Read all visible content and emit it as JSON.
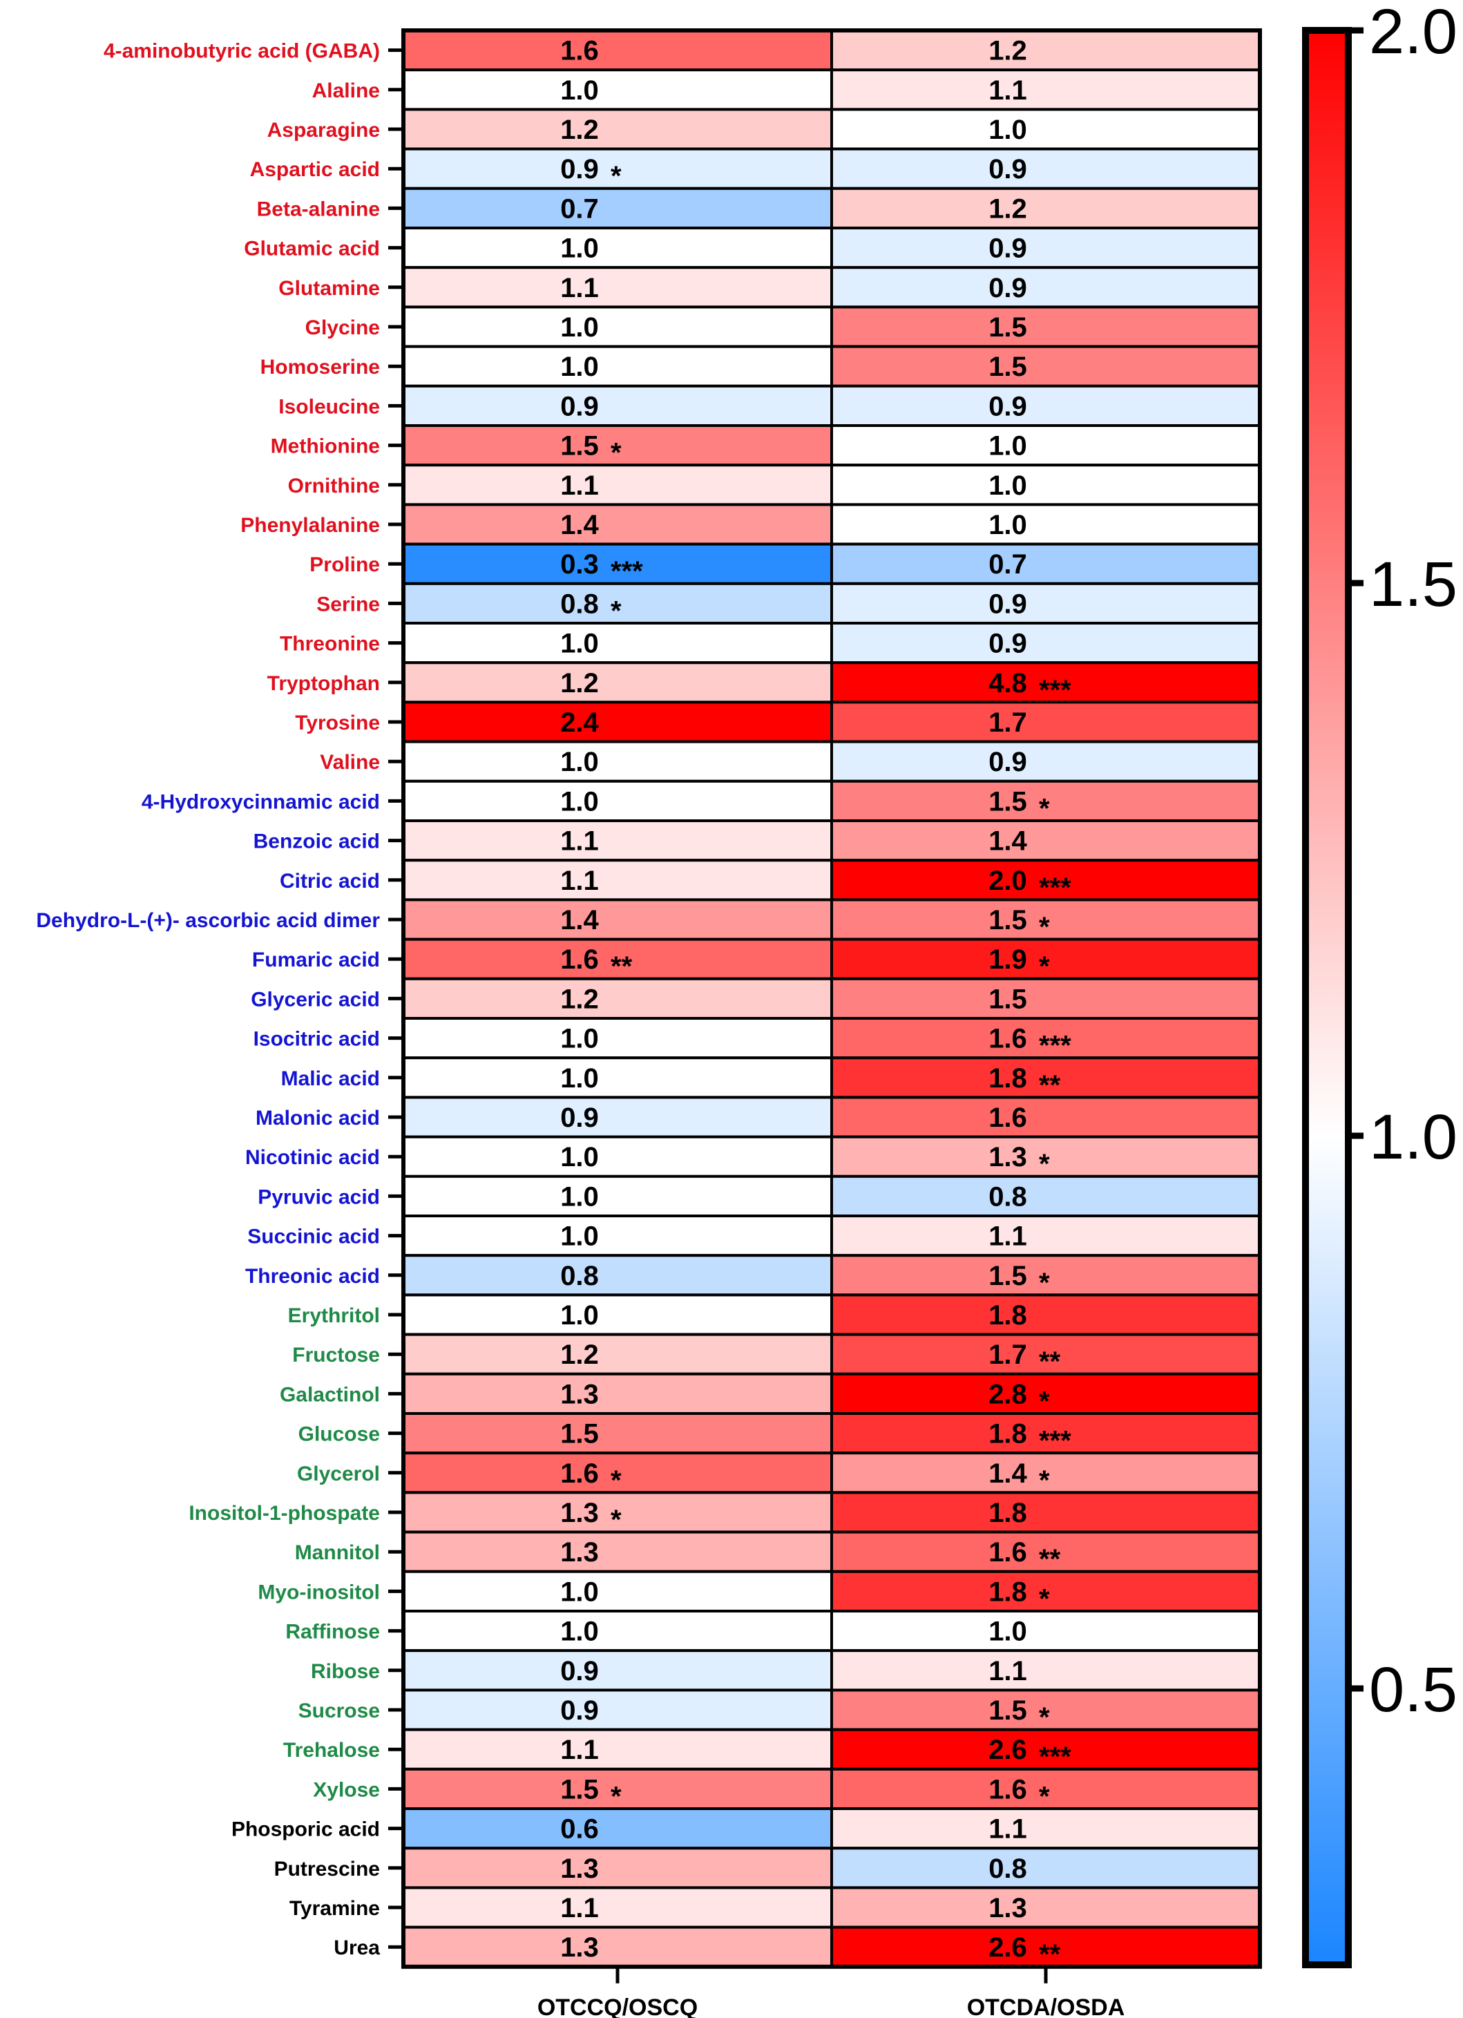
{
  "chart_data": {
    "type": "heatmap",
    "columns": [
      "OTCCQ/OSCQ",
      "OTCDA/OSDA"
    ],
    "colorbar": {
      "min": 0.25,
      "max": 2.0,
      "ticks": [
        0.5,
        1.0,
        1.5,
        2.0
      ],
      "tick_labels": [
        "0.5",
        "1.0",
        "1.5",
        "2.0"
      ],
      "low_color": "#1a85ff",
      "mid_color": "#ffffff",
      "high_color": "#ff0000"
    },
    "group_colors": {
      "red": "#e0101e",
      "blue": "#1414d2",
      "green": "#1f8a47",
      "black": "#000000"
    },
    "rows": [
      {
        "label": "4-aminobutyric acid (GABA)",
        "group": "red",
        "values": [
          1.6,
          1.2
        ],
        "sig": [
          "",
          ""
        ]
      },
      {
        "label": "Alaline",
        "group": "red",
        "values": [
          1.0,
          1.1
        ],
        "sig": [
          "",
          ""
        ]
      },
      {
        "label": "Asparagine",
        "group": "red",
        "values": [
          1.2,
          1.0
        ],
        "sig": [
          "",
          ""
        ]
      },
      {
        "label": "Aspartic acid",
        "group": "red",
        "values": [
          0.9,
          0.9
        ],
        "sig": [
          "*",
          ""
        ]
      },
      {
        "label": "Beta-alanine",
        "group": "red",
        "values": [
          0.7,
          1.2
        ],
        "sig": [
          "",
          ""
        ]
      },
      {
        "label": "Glutamic acid",
        "group": "red",
        "values": [
          1.0,
          0.9
        ],
        "sig": [
          "",
          ""
        ]
      },
      {
        "label": "Glutamine",
        "group": "red",
        "values": [
          1.1,
          0.9
        ],
        "sig": [
          "",
          ""
        ]
      },
      {
        "label": "Glycine",
        "group": "red",
        "values": [
          1.0,
          1.5
        ],
        "sig": [
          "",
          ""
        ]
      },
      {
        "label": "Homoserine",
        "group": "red",
        "values": [
          1.0,
          1.5
        ],
        "sig": [
          "",
          ""
        ]
      },
      {
        "label": "Isoleucine",
        "group": "red",
        "values": [
          0.9,
          0.9
        ],
        "sig": [
          "",
          ""
        ]
      },
      {
        "label": "Methionine",
        "group": "red",
        "values": [
          1.5,
          1.0
        ],
        "sig": [
          "*",
          ""
        ]
      },
      {
        "label": "Ornithine",
        "group": "red",
        "values": [
          1.1,
          1.0
        ],
        "sig": [
          "",
          ""
        ]
      },
      {
        "label": "Phenylalanine",
        "group": "red",
        "values": [
          1.4,
          1.0
        ],
        "sig": [
          "",
          ""
        ]
      },
      {
        "label": "Proline",
        "group": "red",
        "values": [
          0.3,
          0.7
        ],
        "sig": [
          "***",
          ""
        ]
      },
      {
        "label": "Serine",
        "group": "red",
        "values": [
          0.8,
          0.9
        ],
        "sig": [
          "*",
          ""
        ]
      },
      {
        "label": "Threonine",
        "group": "red",
        "values": [
          1.0,
          0.9
        ],
        "sig": [
          "",
          ""
        ]
      },
      {
        "label": "Tryptophan",
        "group": "red",
        "values": [
          1.2,
          4.8
        ],
        "sig": [
          "",
          "***"
        ]
      },
      {
        "label": "Tyrosine",
        "group": "red",
        "values": [
          2.4,
          1.7
        ],
        "sig": [
          "",
          ""
        ]
      },
      {
        "label": "Valine",
        "group": "red",
        "values": [
          1.0,
          0.9
        ],
        "sig": [
          "",
          ""
        ]
      },
      {
        "label": "4-Hydroxycinnamic acid",
        "group": "blue",
        "values": [
          1.0,
          1.5
        ],
        "sig": [
          "",
          "*"
        ]
      },
      {
        "label": "Benzoic acid",
        "group": "blue",
        "values": [
          1.1,
          1.4
        ],
        "sig": [
          "",
          ""
        ]
      },
      {
        "label": "Citric acid",
        "group": "blue",
        "values": [
          1.1,
          2.0
        ],
        "sig": [
          "",
          "***"
        ]
      },
      {
        "label": "Dehydro-L-(+)- ascorbic acid dimer",
        "group": "blue",
        "values": [
          1.4,
          1.5
        ],
        "sig": [
          "",
          "*"
        ]
      },
      {
        "label": "Fumaric acid",
        "group": "blue",
        "values": [
          1.6,
          1.9
        ],
        "sig": [
          "**",
          "*"
        ]
      },
      {
        "label": "Glyceric acid",
        "group": "blue",
        "values": [
          1.2,
          1.5
        ],
        "sig": [
          "",
          ""
        ]
      },
      {
        "label": "Isocitric acid",
        "group": "blue",
        "values": [
          1.0,
          1.6
        ],
        "sig": [
          "",
          "***"
        ]
      },
      {
        "label": "Malic acid",
        "group": "blue",
        "values": [
          1.0,
          1.8
        ],
        "sig": [
          "",
          "**"
        ]
      },
      {
        "label": "Malonic acid",
        "group": "blue",
        "values": [
          0.9,
          1.6
        ],
        "sig": [
          "",
          ""
        ]
      },
      {
        "label": "Nicotinic acid",
        "group": "blue",
        "values": [
          1.0,
          1.3
        ],
        "sig": [
          "",
          "*"
        ]
      },
      {
        "label": "Pyruvic acid",
        "group": "blue",
        "values": [
          1.0,
          0.8
        ],
        "sig": [
          "",
          ""
        ]
      },
      {
        "label": "Succinic acid",
        "group": "blue",
        "values": [
          1.0,
          1.1
        ],
        "sig": [
          "",
          ""
        ]
      },
      {
        "label": "Threonic acid",
        "group": "blue",
        "values": [
          0.8,
          1.5
        ],
        "sig": [
          "",
          "*"
        ]
      },
      {
        "label": "Erythritol",
        "group": "green",
        "values": [
          1.0,
          1.8
        ],
        "sig": [
          "",
          ""
        ]
      },
      {
        "label": "Fructose",
        "group": "green",
        "values": [
          1.2,
          1.7
        ],
        "sig": [
          "",
          "**"
        ]
      },
      {
        "label": "Galactinol",
        "group": "green",
        "values": [
          1.3,
          2.8
        ],
        "sig": [
          "",
          "*"
        ]
      },
      {
        "label": "Glucose",
        "group": "green",
        "values": [
          1.5,
          1.8
        ],
        "sig": [
          "",
          "***"
        ]
      },
      {
        "label": "Glycerol",
        "group": "green",
        "values": [
          1.6,
          1.4
        ],
        "sig": [
          "*",
          "*"
        ]
      },
      {
        "label": "Inositol-1-phospate",
        "group": "green",
        "values": [
          1.3,
          1.8
        ],
        "sig": [
          "*",
          ""
        ]
      },
      {
        "label": "Mannitol",
        "group": "green",
        "values": [
          1.3,
          1.6
        ],
        "sig": [
          "",
          "**"
        ]
      },
      {
        "label": "Myo-inositol",
        "group": "green",
        "values": [
          1.0,
          1.8
        ],
        "sig": [
          "",
          "*"
        ]
      },
      {
        "label": "Raffinose",
        "group": "green",
        "values": [
          1.0,
          1.0
        ],
        "sig": [
          "",
          ""
        ]
      },
      {
        "label": "Ribose",
        "group": "green",
        "values": [
          0.9,
          1.1
        ],
        "sig": [
          "",
          ""
        ]
      },
      {
        "label": "Sucrose",
        "group": "green",
        "values": [
          0.9,
          1.5
        ],
        "sig": [
          "",
          "*"
        ]
      },
      {
        "label": "Trehalose",
        "group": "green",
        "values": [
          1.1,
          2.6
        ],
        "sig": [
          "",
          "***"
        ]
      },
      {
        "label": "Xylose",
        "group": "green",
        "values": [
          1.5,
          1.6
        ],
        "sig": [
          "*",
          "*"
        ]
      },
      {
        "label": "Phosporic acid",
        "group": "black",
        "values": [
          0.6,
          1.1
        ],
        "sig": [
          "",
          ""
        ]
      },
      {
        "label": "Putrescine",
        "group": "black",
        "values": [
          1.3,
          0.8
        ],
        "sig": [
          "",
          ""
        ]
      },
      {
        "label": "Tyramine",
        "group": "black",
        "values": [
          1.1,
          1.3
        ],
        "sig": [
          "",
          ""
        ]
      },
      {
        "label": "Urea",
        "group": "black",
        "values": [
          1.3,
          2.6
        ],
        "sig": [
          "",
          "**"
        ]
      }
    ]
  }
}
